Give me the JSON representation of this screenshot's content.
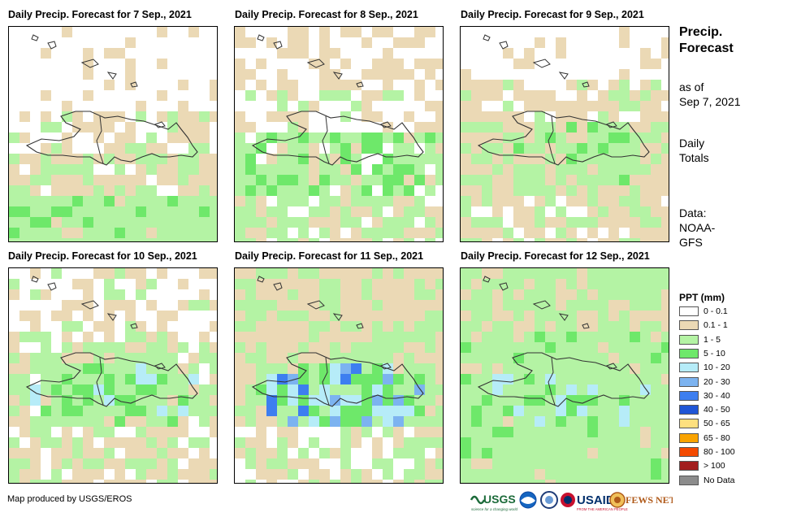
{
  "panels": [
    {
      "title": "Daily Precip. Forecast for 7 Sep., 2021",
      "day": 7
    },
    {
      "title": "Daily Precip. Forecast for 8 Sep., 2021",
      "day": 8
    },
    {
      "title": "Daily Precip. Forecast for 9 Sep., 2021",
      "day": 9
    },
    {
      "title": "Daily Precip. Forecast for 10 Sep., 2021",
      "day": 10
    },
    {
      "title": "Daily Precip. Forecast for 11 Sep., 2021",
      "day": 11
    },
    {
      "title": "Daily Precip. Forecast for 12 Sep., 2021",
      "day": 12
    }
  ],
  "side": {
    "title_line1": "Precip.",
    "title_line2": "Forecast",
    "asof_line1": "as of",
    "asof_line2": "Sep 7, 2021",
    "totals_line1": "Daily",
    "totals_line2": "Totals",
    "data_line1": "Data:",
    "data_line2": "NOAA-",
    "data_line3": "GFS"
  },
  "legend": {
    "title": "PPT (mm)",
    "items": [
      {
        "label": "0 - 0.1",
        "color": "#ffffff"
      },
      {
        "label": "0.1 - 1",
        "color": "#ebd9b5"
      },
      {
        "label": "1 - 5",
        "color": "#b4f3a4"
      },
      {
        "label": "5 - 10",
        "color": "#6ee86a"
      },
      {
        "label": "10 - 20",
        "color": "#b6ecf8"
      },
      {
        "label": "20 - 30",
        "color": "#7cb3f0"
      },
      {
        "label": "30 - 40",
        "color": "#3d7ef0"
      },
      {
        "label": "40 - 50",
        "color": "#1f55d6"
      },
      {
        "label": "50 - 65",
        "color": "#fee07f"
      },
      {
        "label": "65 - 80",
        "color": "#f9a300"
      },
      {
        "label": "80 - 100",
        "color": "#f44a00"
      },
      {
        "label": "> 100",
        "color": "#a21d1d"
      },
      {
        "label": "No Data",
        "color": "#8c8c8c"
      }
    ]
  },
  "credit": "Map produced by USGS/EROS",
  "logos": {
    "usgs": "USGS",
    "usgs_tagline": "science for a changing world",
    "usaid": "USAID",
    "usaid_tagline": "FROM THE AMERICAN PEOPLE",
    "fewsnet": "FEWS NET"
  }
}
